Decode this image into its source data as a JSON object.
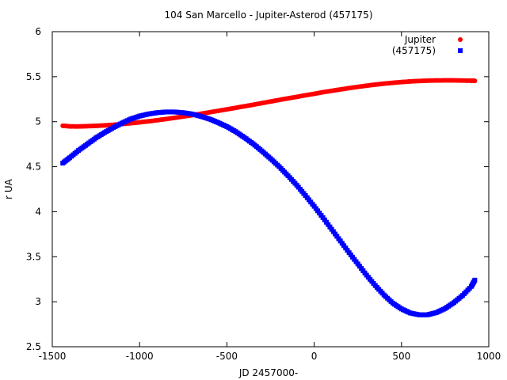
{
  "chart_data": {
    "type": "scatter",
    "title": "104 San Marcello - Jupiter-Asterod (457175)",
    "xlabel": "JD 2457000-",
    "ylabel": "r UA",
    "xlim": [
      -1500,
      1000
    ],
    "ylim": [
      2.5,
      6
    ],
    "xticks": [
      -1500,
      -1000,
      -500,
      0,
      500,
      1000
    ],
    "yticks": [
      2.5,
      3,
      3.5,
      4,
      4.5,
      5,
      5.5,
      6
    ],
    "ytick_labels": [
      "2.5",
      "3",
      "3.5",
      "4",
      "4.5",
      "5",
      "5.5",
      "6"
    ],
    "grid": false,
    "legend_position": "top-right",
    "series": [
      {
        "name": "Jupiter",
        "color": "#ff0000",
        "marker": "circle",
        "points": [
          [
            -1440,
            4.955
          ],
          [
            -1400,
            4.948
          ],
          [
            -1350,
            4.947
          ],
          [
            -1300,
            4.95
          ],
          [
            -1250,
            4.954
          ],
          [
            -1200,
            4.959
          ],
          [
            -1150,
            4.966
          ],
          [
            -1100,
            4.974
          ],
          [
            -1050,
            4.983
          ],
          [
            -1000,
            4.993
          ],
          [
            -950,
            5.004
          ],
          [
            -900,
            5.016
          ],
          [
            -850,
            5.029
          ],
          [
            -800,
            5.043
          ],
          [
            -750,
            5.057
          ],
          [
            -700,
            5.072
          ],
          [
            -650,
            5.088
          ],
          [
            -600,
            5.104
          ],
          [
            -550,
            5.12
          ],
          [
            -500,
            5.137
          ],
          [
            -450,
            5.154
          ],
          [
            -400,
            5.171
          ],
          [
            -350,
            5.188
          ],
          [
            -300,
            5.206
          ],
          [
            -250,
            5.224
          ],
          [
            -200,
            5.242
          ],
          [
            -150,
            5.259
          ],
          [
            -100,
            5.276
          ],
          [
            -50,
            5.293
          ],
          [
            0,
            5.31
          ],
          [
            50,
            5.327
          ],
          [
            100,
            5.343
          ],
          [
            150,
            5.358
          ],
          [
            200,
            5.373
          ],
          [
            250,
            5.387
          ],
          [
            300,
            5.4
          ],
          [
            350,
            5.412
          ],
          [
            400,
            5.423
          ],
          [
            450,
            5.432
          ],
          [
            500,
            5.44
          ],
          [
            550,
            5.447
          ],
          [
            600,
            5.452
          ],
          [
            650,
            5.456
          ],
          [
            700,
            5.458
          ],
          [
            750,
            5.459
          ],
          [
            800,
            5.459
          ],
          [
            850,
            5.457
          ],
          [
            900,
            5.455
          ],
          [
            920,
            5.454
          ]
        ]
      },
      {
        "name": "(457175)",
        "color": "#0000ff",
        "marker": "square",
        "points": [
          [
            -1440,
            4.54
          ],
          [
            -1400,
            4.6
          ],
          [
            -1350,
            4.68
          ],
          [
            -1300,
            4.75
          ],
          [
            -1250,
            4.82
          ],
          [
            -1200,
            4.88
          ],
          [
            -1150,
            4.935
          ],
          [
            -1100,
            4.985
          ],
          [
            -1050,
            5.03
          ],
          [
            -1000,
            5.062
          ],
          [
            -950,
            5.085
          ],
          [
            -900,
            5.1
          ],
          [
            -850,
            5.108
          ],
          [
            -800,
            5.108
          ],
          [
            -750,
            5.1
          ],
          [
            -700,
            5.085
          ],
          [
            -650,
            5.06
          ],
          [
            -600,
            5.03
          ],
          [
            -550,
            4.99
          ],
          [
            -500,
            4.945
          ],
          [
            -450,
            4.89
          ],
          [
            -400,
            4.825
          ],
          [
            -350,
            4.755
          ],
          [
            -300,
            4.675
          ],
          [
            -250,
            4.59
          ],
          [
            -200,
            4.5
          ],
          [
            -150,
            4.4
          ],
          [
            -100,
            4.295
          ],
          [
            -50,
            4.18
          ],
          [
            0,
            4.06
          ],
          [
            50,
            3.935
          ],
          [
            100,
            3.805
          ],
          [
            150,
            3.675
          ],
          [
            200,
            3.545
          ],
          [
            250,
            3.42
          ],
          [
            300,
            3.295
          ],
          [
            350,
            3.18
          ],
          [
            400,
            3.075
          ],
          [
            450,
            2.985
          ],
          [
            500,
            2.92
          ],
          [
            550,
            2.875
          ],
          [
            600,
            2.855
          ],
          [
            650,
            2.855
          ],
          [
            700,
            2.88
          ],
          [
            750,
            2.925
          ],
          [
            800,
            2.99
          ],
          [
            850,
            3.07
          ],
          [
            900,
            3.17
          ],
          [
            920,
            3.24
          ]
        ]
      }
    ]
  }
}
